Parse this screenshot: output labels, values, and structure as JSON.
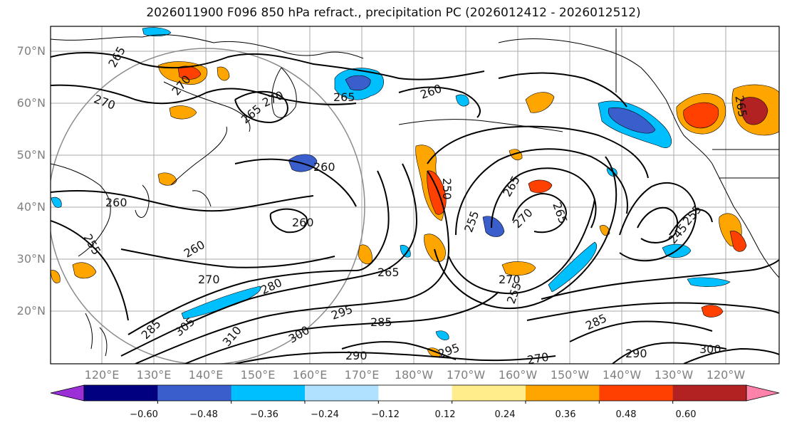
{
  "title": "2026011900 F096 850 hPa refract., precipitation PC (2026012412 - 2026012512)",
  "lat_labels": [
    "70°N",
    "60°N",
    "50°N",
    "40°N",
    "30°N",
    "20°N"
  ],
  "lon_labels": [
    "120°E",
    "130°E",
    "140°E",
    "150°E",
    "160°E",
    "170°E",
    "180°W",
    "170°W",
    "160°W",
    "150°W",
    "140°W",
    "130°W",
    "120°W"
  ],
  "contour_labels": [
    "265",
    "270",
    "265",
    "270",
    "270",
    "260",
    "265",
    "260",
    "260",
    "250",
    "265",
    "270",
    "265",
    "255",
    "260",
    "255",
    "260",
    "270",
    "280",
    "265",
    "270",
    "255",
    "285",
    "295",
    "285",
    "305",
    "310",
    "300",
    "290",
    "295",
    "285",
    "290",
    "300",
    "270",
    "245",
    "255",
    "265"
  ],
  "colorbar": {
    "labels": [
      "−0.60",
      "−0.48",
      "−0.36",
      "−0.24",
      "−0.12",
      "0.12",
      "0.24",
      "0.36",
      "0.48",
      "0.60"
    ],
    "colors": [
      "#9b30d9",
      "#000080",
      "#3a5fcd",
      "#00bfff",
      "#b0e2ff",
      "#ffffff",
      "#ffec8b",
      "#ffa500",
      "#ff4000",
      "#b22222",
      "#ff82ab"
    ]
  },
  "colors": {
    "neg_strong": "#3a5fcd",
    "neg_mid": "#00bfff",
    "neg_light": "#b0e2ff",
    "pos_light": "#ffec8b",
    "pos_mid": "#ffa500",
    "pos_strong": "#ff4000",
    "pos_dark": "#b22222"
  }
}
